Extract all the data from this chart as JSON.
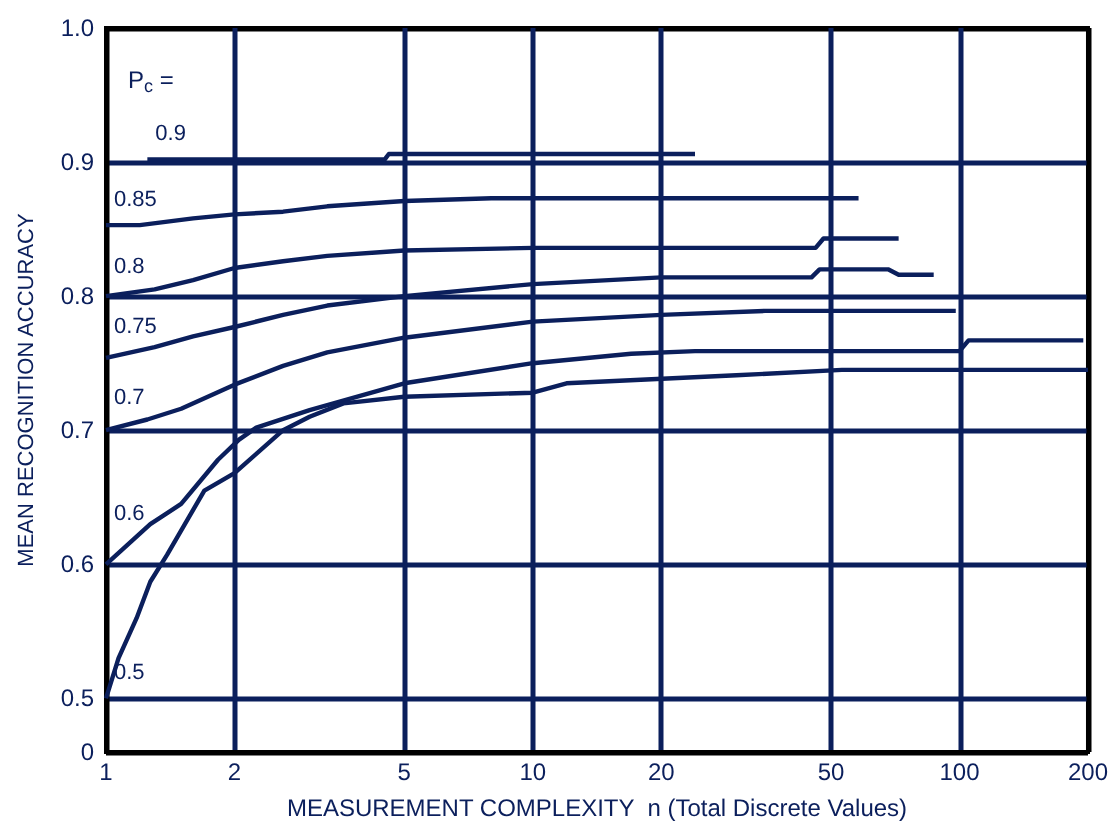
{
  "chart_data": {
    "type": "line",
    "xlabel": "MEASUREMENT COMPLEXITY  n (Total Discrete Values)",
    "ylabel": "MEAN RECOGNITION ACCURACY",
    "legend_title": "P$_{c}$ =",
    "log": "x",
    "grid": true,
    "legend": false,
    "line_style": "solid",
    "xlim": [
      1,
      200
    ],
    "xticks": [
      1,
      2,
      5,
      10,
      20,
      50,
      100,
      200
    ],
    "ylim": [
      0.46,
      1.0
    ],
    "yticks": [
      {
        "value": 0.46,
        "label": "0"
      },
      0.5,
      0.6,
      0.7,
      0.8,
      0.9,
      {
        "value": 1,
        "label": "1.0"
      }
    ],
    "series": [
      {
        "name": "0.9",
        "color": "#0b1f5c",
        "x": [
          1.25,
          4.5,
          4.6,
          24
        ],
        "values": [
          0.902,
          0.902,
          0.906,
          0.906
        ]
      },
      {
        "name": "0.85",
        "color": "#0b1f5c",
        "x": [
          1,
          1.2,
          1.6,
          2,
          2.6,
          3.3,
          5,
          8,
          58
        ],
        "values": [
          0.853,
          0.853,
          0.858,
          0.861,
          0.863,
          0.867,
          0.871,
          0.873,
          0.873
        ]
      },
      {
        "name": "0.8",
        "color": "#0b1f5c",
        "x": [
          1,
          1.3,
          1.6,
          2,
          2.6,
          3.3,
          5,
          10,
          46,
          48,
          72
        ],
        "values": [
          0.8,
          0.805,
          0.812,
          0.821,
          0.826,
          0.83,
          0.834,
          0.836,
          0.836,
          0.843,
          0.843
        ]
      },
      {
        "name": "0.75",
        "color": "#0b1f5c",
        "x": [
          1,
          1.3,
          1.6,
          2,
          2.6,
          3.3,
          5,
          10,
          20,
          45,
          47,
          68,
          72,
          87
        ],
        "values": [
          0.754,
          0.762,
          0.77,
          0.777,
          0.786,
          0.793,
          0.8,
          0.809,
          0.814,
          0.814,
          0.82,
          0.82,
          0.816,
          0.816
        ]
      },
      {
        "name": "0.7",
        "color": "#0b1f5c",
        "x": [
          1,
          1.25,
          1.5,
          2,
          2.6,
          3.3,
          5,
          10,
          20,
          35,
          98
        ],
        "values": [
          0.7,
          0.708,
          0.716,
          0.734,
          0.748,
          0.758,
          0.769,
          0.781,
          0.786,
          0.789,
          0.789
        ]
      },
      {
        "name": "0.6",
        "color": "#0b1f5c",
        "x": [
          1,
          1.27,
          1.5,
          1.83,
          2.05,
          2.25,
          3,
          5,
          10,
          17,
          24,
          100,
          105,
          195
        ],
        "values": [
          0.6,
          0.63,
          0.645,
          0.678,
          0.693,
          0.702,
          0.715,
          0.735,
          0.75,
          0.757,
          0.759,
          0.759,
          0.767,
          0.767
        ]
      },
      {
        "name": "0.5",
        "color": "#0b1f5c",
        "x": [
          1,
          1.07,
          1.18,
          1.27,
          1.39,
          1.7,
          2,
          2.6,
          3,
          3.6,
          5,
          10,
          12,
          30,
          53,
          200
        ],
        "values": [
          0.5,
          0.53,
          0.56,
          0.587,
          0.607,
          0.655,
          0.668,
          0.7,
          0.71,
          0.72,
          0.725,
          0.728,
          0.735,
          0.741,
          0.745,
          0.745
        ]
      }
    ]
  }
}
